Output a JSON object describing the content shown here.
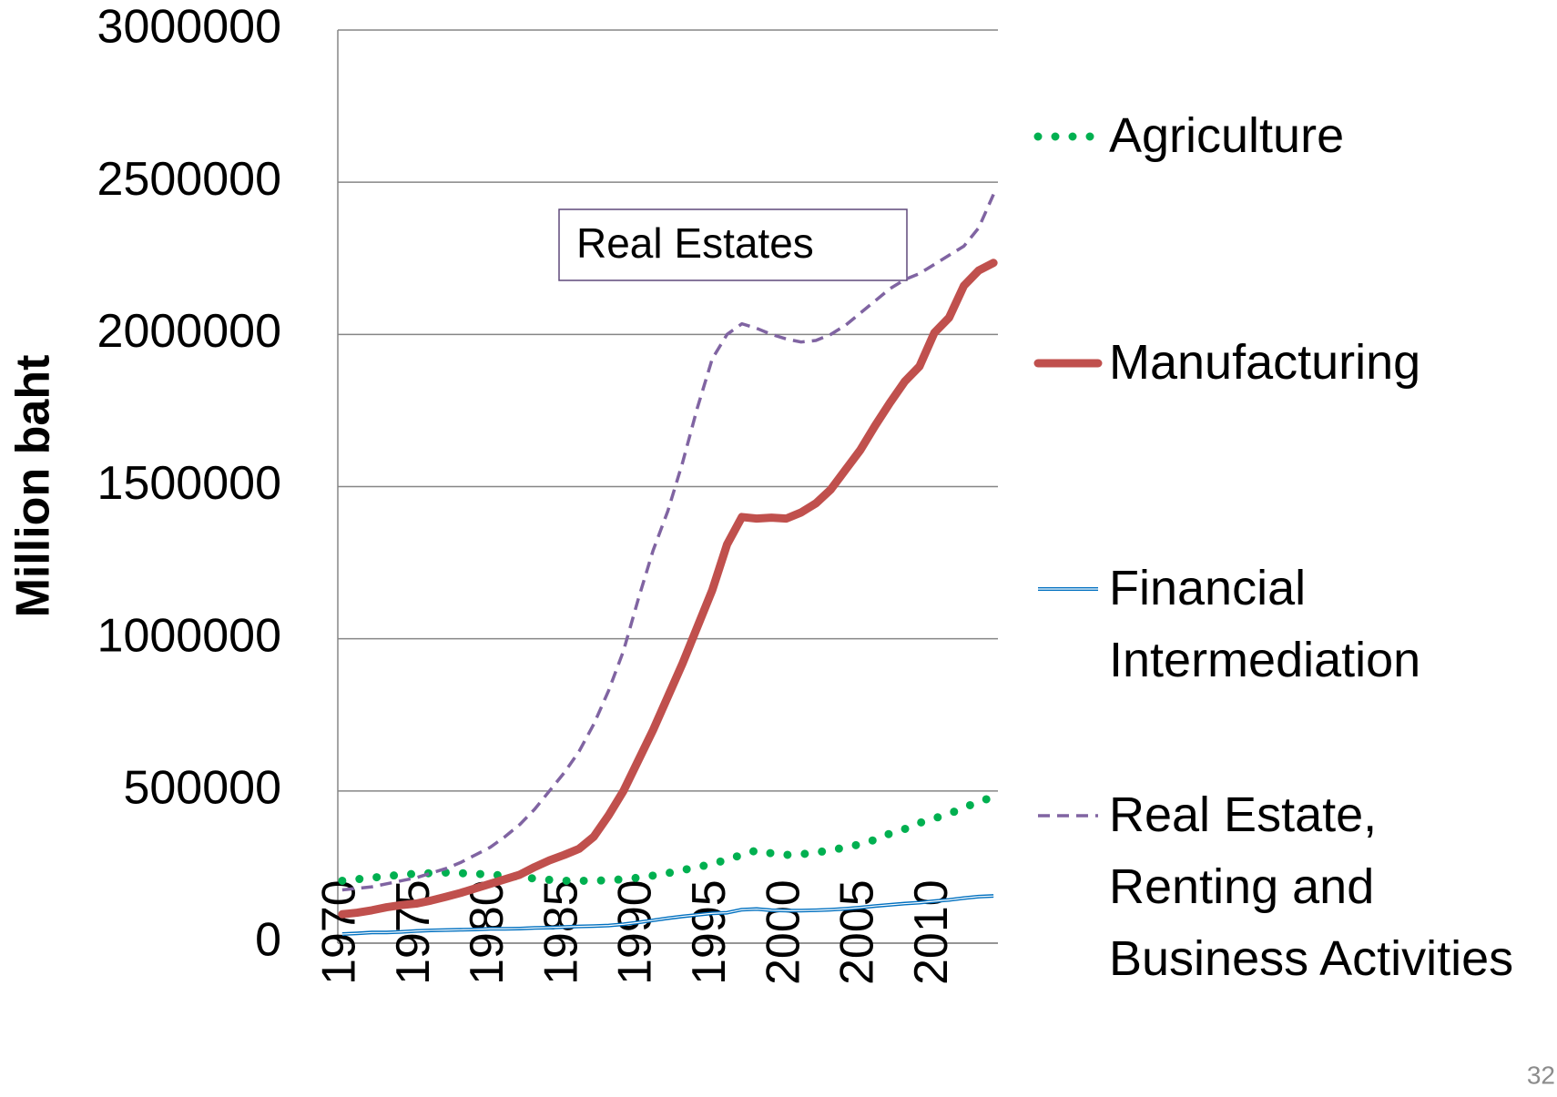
{
  "chart_data": {
    "type": "line",
    "y_label": "Million baht",
    "annotation": "Real Estates",
    "page_number": "32",
    "x": [
      1970,
      1971,
      1972,
      1973,
      1974,
      1975,
      1976,
      1977,
      1978,
      1979,
      1980,
      1981,
      1982,
      1983,
      1984,
      1985,
      1986,
      1987,
      1988,
      1989,
      1990,
      1991,
      1992,
      1993,
      1994,
      1995,
      1996,
      1997,
      1998,
      1999,
      2000,
      2001,
      2002,
      2003,
      2004,
      2005,
      2006,
      2007,
      2008,
      2009,
      2010,
      2011,
      2012,
      2013,
      2014
    ],
    "xlim": [
      1969.7,
      2014.3
    ],
    "xticks": [
      1970,
      1975,
      1980,
      1985,
      1990,
      1995,
      2000,
      2005,
      2010
    ],
    "ylim": [
      0,
      3000000
    ],
    "yticks": [
      0,
      500000,
      1000000,
      1500000,
      2000000,
      2500000,
      3000000
    ],
    "grid": true,
    "series": [
      {
        "name": "Agriculture",
        "color": "#00b050",
        "line_style": "dotted",
        "values": [
          205000,
          210000,
          215000,
          220000,
          225000,
          228000,
          230000,
          232000,
          230000,
          228000,
          225000,
          222000,
          218000,
          212000,
          208000,
          205000,
          205000,
          205000,
          207000,
          210000,
          215000,
          222000,
          230000,
          240000,
          250000,
          260000,
          275000,
          290000,
          305000,
          295000,
          290000,
          292000,
          298000,
          305000,
          315000,
          325000,
          340000,
          360000,
          375000,
          395000,
          410000,
          425000,
          445000,
          465000,
          480000
        ]
      },
      {
        "name": "Manufacturing",
        "color": "#c0504d",
        "line_style": "thick",
        "values": [
          95000,
          100000,
          108000,
          118000,
          125000,
          130000,
          140000,
          152000,
          165000,
          180000,
          195000,
          210000,
          225000,
          250000,
          272000,
          290000,
          310000,
          350000,
          420000,
          500000,
          600000,
          700000,
          810000,
          920000,
          1040000,
          1160000,
          1310000,
          1400000,
          1395000,
          1398000,
          1395000,
          1415000,
          1445000,
          1490000,
          1555000,
          1620000,
          1700000,
          1775000,
          1845000,
          1895000,
          2005000,
          2055000,
          2160000,
          2210000,
          2235000
        ]
      },
      {
        "name": "Financial Intermediation",
        "color": "#0070c0",
        "line_style": "double",
        "values": [
          30000,
          32000,
          35000,
          35000,
          37000,
          40000,
          42000,
          43000,
          44000,
          45000,
          47000,
          47000,
          48000,
          50000,
          51000,
          53000,
          55000,
          56000,
          58000,
          62000,
          68000,
          75000,
          82000,
          88000,
          93000,
          98000,
          100000,
          110000,
          112000,
          108000,
          107000,
          107000,
          108000,
          110000,
          113000,
          117000,
          122000,
          126000,
          130000,
          133000,
          138000,
          142000,
          148000,
          153000,
          155000
        ]
      },
      {
        "name": "Real Estate, Renting and Business Activities",
        "color": "#8064a2",
        "line_style": "dashed",
        "values": [
          175000,
          180000,
          185000,
          195000,
          205000,
          215000,
          230000,
          245000,
          265000,
          290000,
          315000,
          350000,
          390000,
          440000,
          500000,
          560000,
          630000,
          720000,
          830000,
          960000,
          1130000,
          1290000,
          1420000,
          1580000,
          1760000,
          1920000,
          2000000,
          2035000,
          2020000,
          2000000,
          1985000,
          1975000,
          1980000,
          2000000,
          2030000,
          2070000,
          2110000,
          2150000,
          2180000,
          2200000,
          2230000,
          2260000,
          2290000,
          2350000,
          2460000
        ]
      }
    ]
  }
}
